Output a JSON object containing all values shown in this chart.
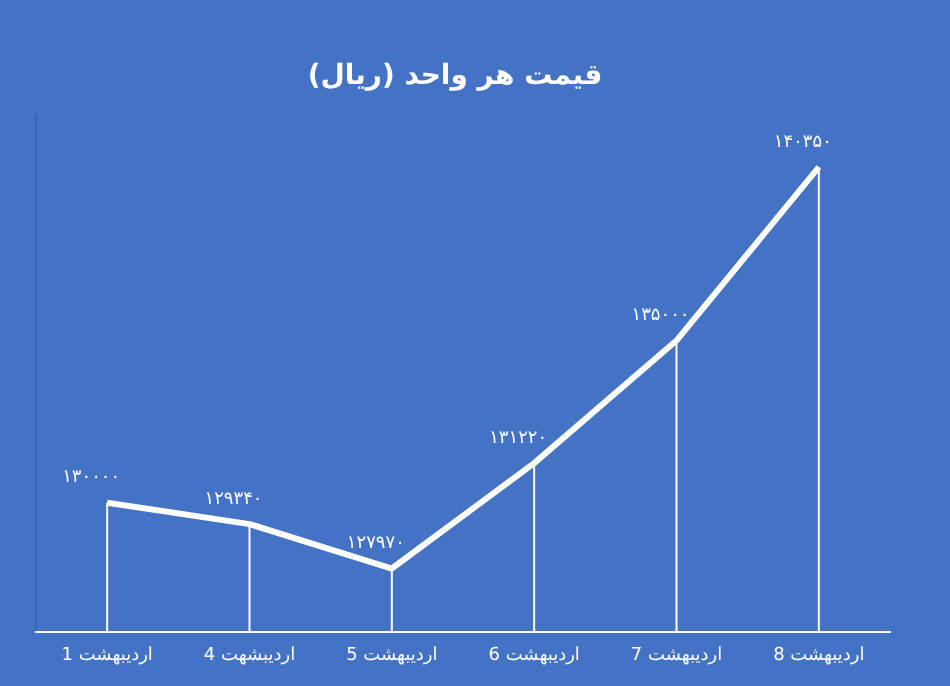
{
  "chart_data": {
    "type": "line",
    "title": "قیمت هر واحد (ریال)",
    "categories": [
      "1 اردیبهشت",
      "4 اردیبشهت",
      "5 اردیبهشت",
      "6 اردیبهشت",
      "7 اردیبهشت",
      "8 اردیبهشت"
    ],
    "series": [
      {
        "color": "#ffffff",
        "values": [
          130000,
          129340,
          127970,
          131220,
          135000,
          140350
        ],
        "value_labels": [
          "۱۳۰۰۰۰",
          "۱۲۹۳۴۰",
          "۱۲۷۹۷۰",
          "۱۳۱۲۲۰",
          "۱۳۵۰۰۰",
          "۱۴۰۳۵۰"
        ]
      }
    ],
    "marker": "none",
    "grid": "x",
    "legend": false,
    "tick_labels": "x"
  }
}
